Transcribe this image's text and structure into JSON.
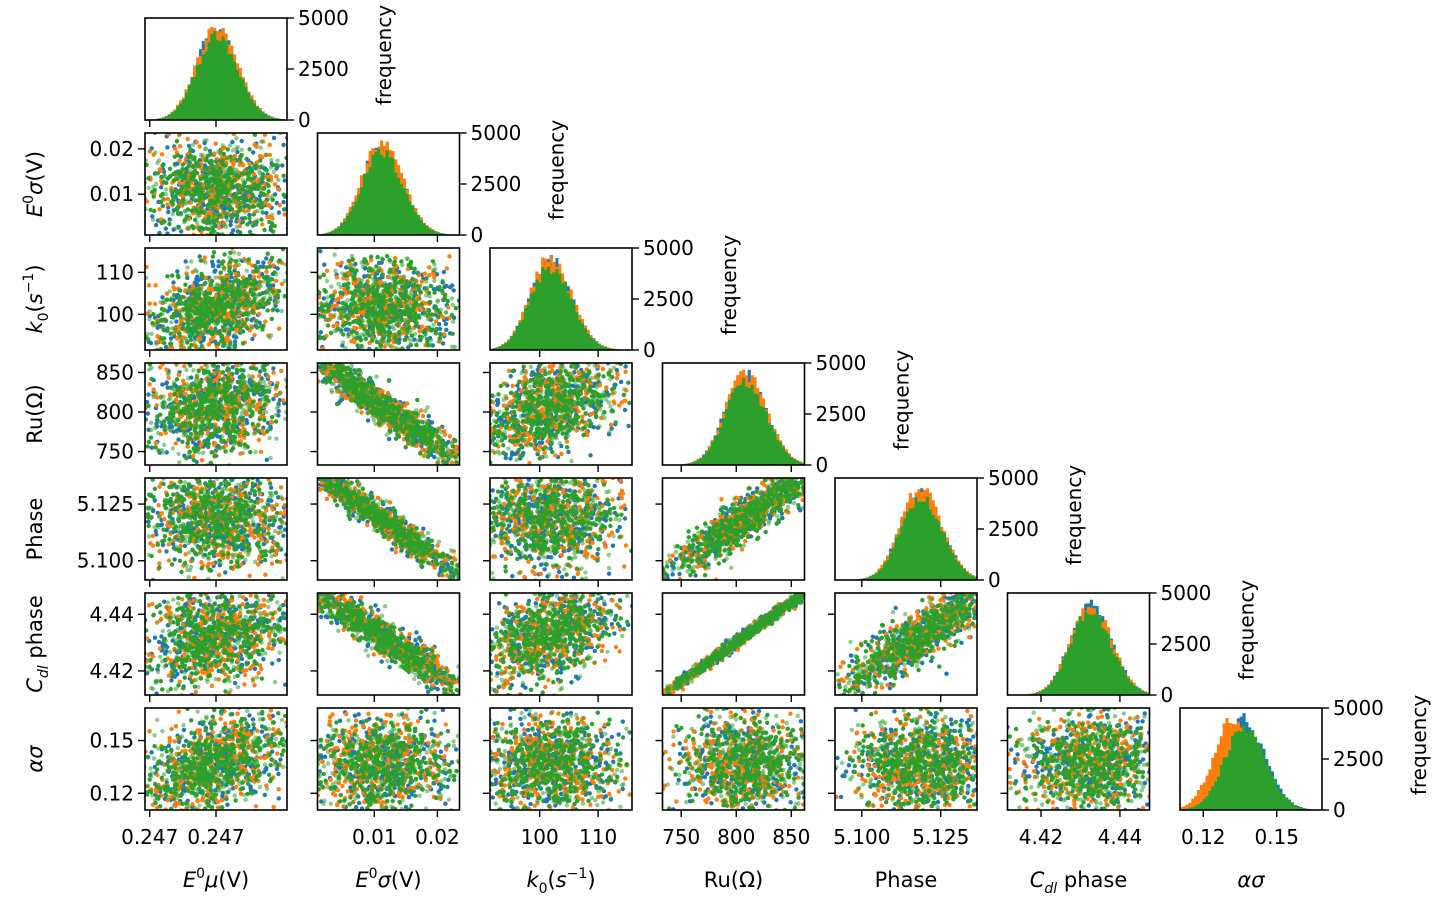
{
  "chart_data": {
    "type": "corner",
    "parameters": [
      {
        "key": "e0_mu",
        "label": "E⁰μ(V)",
        "label_html": [
          "E",
          "0",
          "μ(V)"
        ],
        "range": [
          0.24665,
          0.24755
        ],
        "ticks": [
          "0.247",
          "0.247"
        ],
        "tick_values": [
          0.24668,
          0.2471
        ],
        "peak_frac": 0.5
      },
      {
        "key": "e0_sigma",
        "label": "E⁰σ(V)",
        "label_html": [
          "E",
          "0",
          "σ(V)"
        ],
        "range": [
          0.001,
          0.0235
        ],
        "ticks": [
          "0.01",
          "0.02"
        ],
        "tick_values": [
          0.01,
          0.02
        ],
        "peak_frac": 0.45
      },
      {
        "key": "k0",
        "label": "k₀(s⁻¹)",
        "range": [
          91.5,
          115.8
        ],
        "ticks": [
          "100",
          "110"
        ],
        "tick_values": [
          100,
          110
        ],
        "peak_frac": 0.42
      },
      {
        "key": "ru",
        "label": "Ru(Ω)",
        "range": [
          733,
          862
        ],
        "ticks": [
          "750",
          "800",
          "850"
        ],
        "tick_values": [
          750,
          800,
          850
        ],
        "peak_frac": 0.58
      },
      {
        "key": "phase",
        "label": "Phase",
        "range": [
          5.0915,
          5.1365
        ],
        "ticks": [
          "5.100",
          "5.125"
        ],
        "tick_values": [
          5.1,
          5.125
        ],
        "peak_frac": 0.6
      },
      {
        "key": "cdl_phase",
        "label": "Cdl phase",
        "range": [
          4.4115,
          4.4475
        ],
        "ticks": [
          "4.42",
          "4.44"
        ],
        "tick_values": [
          4.42,
          4.44
        ],
        "peak_frac": 0.58
      },
      {
        "key": "alpha_sigma",
        "label": "ασ",
        "range": [
          0.1105,
          0.1685
        ],
        "ticks": [
          "0.12",
          "0.15"
        ],
        "tick_values": [
          0.12,
          0.15
        ],
        "peak_frac": 0.45
      }
    ],
    "axis_labels": {
      "x": [
        "E0μ(V)",
        "E0σ(V)",
        "k0(s−1)",
        "Ru(Ω)",
        "Phase",
        "Cdl phase",
        "ασ"
      ],
      "y": [
        "E0σ(V)",
        "k0(s−1)",
        "Ru(Ω)",
        "Phase",
        "Cdl phase",
        "ασ"
      ]
    },
    "histogram": {
      "ylabel": "frequency",
      "ylim": [
        0,
        5000
      ],
      "ticks": [
        "0",
        "2500",
        "5000"
      ],
      "tick_values": [
        0,
        2500,
        5000
      ],
      "peak_count": 4500
    },
    "correlations": [
      [
        1.0,
        0.0,
        0.45,
        0.1,
        -0.1,
        0.2,
        0.4
      ],
      [
        0.0,
        1.0,
        -0.1,
        -0.95,
        -0.97,
        -0.95,
        0.0
      ],
      [
        0.45,
        -0.1,
        1.0,
        0.4,
        0.05,
        0.45,
        0.0
      ],
      [
        0.1,
        -0.95,
        0.4,
        1.0,
        0.93,
        0.995,
        0.0
      ],
      [
        -0.1,
        -0.97,
        0.05,
        0.93,
        1.0,
        0.9,
        0.0
      ],
      [
        0.2,
        -0.95,
        0.45,
        0.995,
        0.9,
        1.0,
        0.0
      ],
      [
        0.4,
        0.0,
        0.0,
        0.0,
        0.0,
        0.0,
        1.0
      ]
    ],
    "series_colors": [
      "#1f77b4",
      "#ff7f0e",
      "#2ca02c"
    ],
    "grid": false,
    "legend": "none"
  }
}
